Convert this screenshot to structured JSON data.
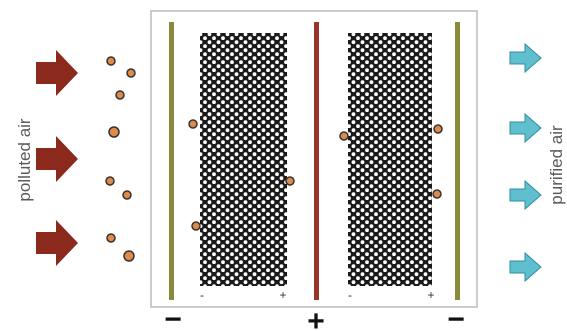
{
  "labels": {
    "left": "polluted air",
    "right": "purified air"
  },
  "signs": {
    "bottom_left": "−",
    "bottom_center": "+",
    "bottom_right": "−",
    "filter1_minus": "-",
    "filter1_plus": "+",
    "filter2_minus": "-",
    "filter2_plus": "+"
  },
  "colors": {
    "inlet_arrow": "#8b2a1c",
    "outlet_arrow": "#5fbfcf",
    "ground_plate": "#8a8a3a",
    "charged_plate": "#9a3328",
    "particle": "#e08a4a",
    "particle_outline": "#333333",
    "filter_dark": "#1a1a1a"
  },
  "icons": {
    "inlet": "right-arrow-icon",
    "outlet": "right-arrow-icon",
    "particle": "dust-particle-icon"
  }
}
